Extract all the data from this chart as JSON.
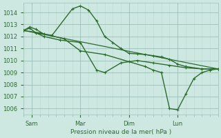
{
  "background_color": "#cce8e0",
  "grid_color_major": "#9dbfb8",
  "grid_color_minor": "#b8d8d0",
  "line_color": "#2d6b2d",
  "xlabel": "Pression niveau de la mer( hPa )",
  "ylim": [
    1005.5,
    1014.8
  ],
  "yticks": [
    1006,
    1007,
    1008,
    1009,
    1010,
    1011,
    1012,
    1013,
    1014
  ],
  "xlim": [
    0,
    96
  ],
  "xtick_major_positions": [
    4,
    28,
    52,
    76
  ],
  "xtick_major_labels": [
    "Sam",
    "Mar",
    "Dim",
    "Lun"
  ],
  "series": [
    {
      "x": [
        0,
        96
      ],
      "y": [
        1012.5,
        1009.3
      ],
      "marker": false,
      "linewidth": 0.9
    },
    {
      "x": [
        0,
        3,
        6,
        10,
        14,
        24,
        28,
        32,
        36,
        40,
        44,
        48,
        52,
        56,
        60,
        64,
        68,
        72,
        76,
        80,
        88,
        96
      ],
      "y": [
        1012.5,
        1012.8,
        1012.6,
        1012.2,
        1012.1,
        1014.3,
        1014.55,
        1014.2,
        1013.3,
        1012.0,
        1011.5,
        1011.0,
        1010.6,
        1010.55,
        1010.5,
        1010.4,
        1010.3,
        1010.1,
        1009.7,
        1009.5,
        1009.3,
        1009.3
      ],
      "marker": true,
      "linewidth": 1.0
    },
    {
      "x": [
        0,
        3,
        6,
        10,
        18,
        28,
        36,
        40,
        48,
        56,
        64,
        72,
        80,
        88,
        96
      ],
      "y": [
        1012.5,
        1012.7,
        1012.3,
        1012.0,
        1011.7,
        1011.5,
        1009.2,
        1009.0,
        1009.8,
        1010.0,
        1009.8,
        1009.6,
        1009.4,
        1009.3,
        1009.3
      ],
      "marker": true,
      "linewidth": 1.0
    },
    {
      "x": [
        0,
        8,
        20,
        28,
        40,
        52,
        60,
        64,
        68,
        72,
        76,
        80,
        84,
        88,
        92,
        96
      ],
      "y": [
        1012.5,
        1012.3,
        1011.8,
        1010.8,
        1010.5,
        1009.9,
        1009.5,
        1009.2,
        1009.0,
        1006.0,
        1005.9,
        1007.2,
        1008.5,
        1009.0,
        1009.2,
        1009.3
      ],
      "marker": true,
      "linewidth": 1.0
    }
  ]
}
